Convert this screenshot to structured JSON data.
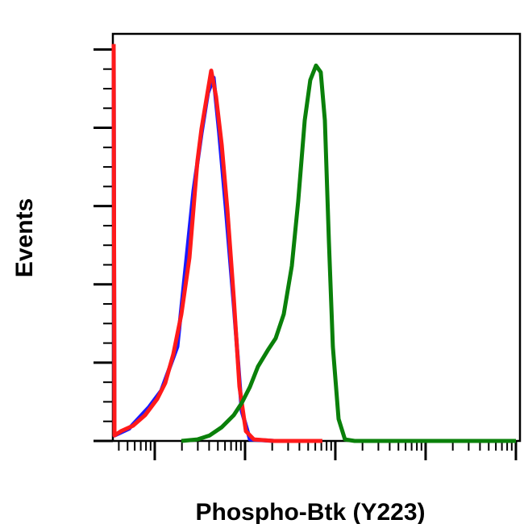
{
  "chart_data": {
    "type": "line",
    "y_label": "Events",
    "x_label": "Phospho-Btk (Y223)",
    "xlim": [
      0.536,
      5.045
    ],
    "ylim": [
      0,
      104
    ],
    "xticks": [
      1,
      2,
      3,
      4,
      5
    ],
    "xminorticks": [
      0.602,
      0.699,
      0.778,
      0.845,
      0.903,
      0.954,
      1.301,
      1.477,
      1.602,
      1.699,
      1.778,
      1.845,
      1.903,
      1.954,
      2.301,
      2.477,
      2.602,
      2.699,
      2.778,
      2.845,
      2.903,
      2.954,
      3.301,
      3.477,
      3.602,
      3.699,
      3.778,
      3.845,
      3.903,
      3.954,
      4.301,
      4.477,
      4.602,
      4.699,
      4.778,
      4.845,
      4.903,
      4.954
    ],
    "yticks": [
      0,
      20,
      40,
      60,
      80,
      100
    ],
    "yminorticks": [
      5,
      10,
      15,
      25,
      30,
      35,
      45,
      50,
      55,
      65,
      70,
      75,
      85,
      90,
      95
    ],
    "series": [
      {
        "color": "#1a1aff",
        "x": [
          0.545,
          0.554,
          0.714,
          0.938,
          1.071,
          1.25,
          1.429,
          1.518,
          1.589,
          1.652,
          1.714,
          1.786,
          1.875,
          1.964,
          2.054,
          2.321
        ],
        "values": [
          100.4,
          1.4,
          3.1,
          8.7,
          12.8,
          24.1,
          63.9,
          78.6,
          88.9,
          92.8,
          78.6,
          59.8,
          34.8,
          7.6,
          0.4,
          0
        ]
      },
      {
        "color": "#ff1a1a",
        "x": [
          0.545,
          0.554,
          0.625,
          0.759,
          0.893,
          1.027,
          1.116,
          1.205,
          1.295,
          1.384,
          1.473,
          1.518,
          1.563,
          1.625,
          1.679,
          1.741,
          1.804,
          1.875,
          1.938,
          2.009,
          2.098,
          2.321,
          2.857
        ],
        "values": [
          101.4,
          1.4,
          2.5,
          3.9,
          6.6,
          10.7,
          14.8,
          22.1,
          32.4,
          46.8,
          71.5,
          79.8,
          86,
          94.6,
          88,
          75.7,
          59.2,
          36.5,
          13.9,
          2.5,
          0.4,
          0,
          0
        ]
      },
      {
        "color": "#0a800a",
        "x": [
          1.295,
          1.473,
          1.607,
          1.741,
          1.875,
          1.964,
          2.054,
          2.143,
          2.25,
          2.339,
          2.429,
          2.518,
          2.589,
          2.661,
          2.723,
          2.786,
          2.839,
          2.884,
          2.929,
          2.973,
          3.036,
          3.107,
          3.214,
          5.0
        ],
        "values": [
          0,
          0.4,
          1.4,
          3.5,
          6.6,
          9.7,
          13.8,
          19.0,
          23.1,
          26.2,
          32.4,
          44.7,
          61.2,
          81.9,
          92.2,
          95.9,
          94.2,
          81.9,
          50.9,
          24.1,
          5.6,
          0.4,
          0,
          0
        ]
      }
    ]
  }
}
